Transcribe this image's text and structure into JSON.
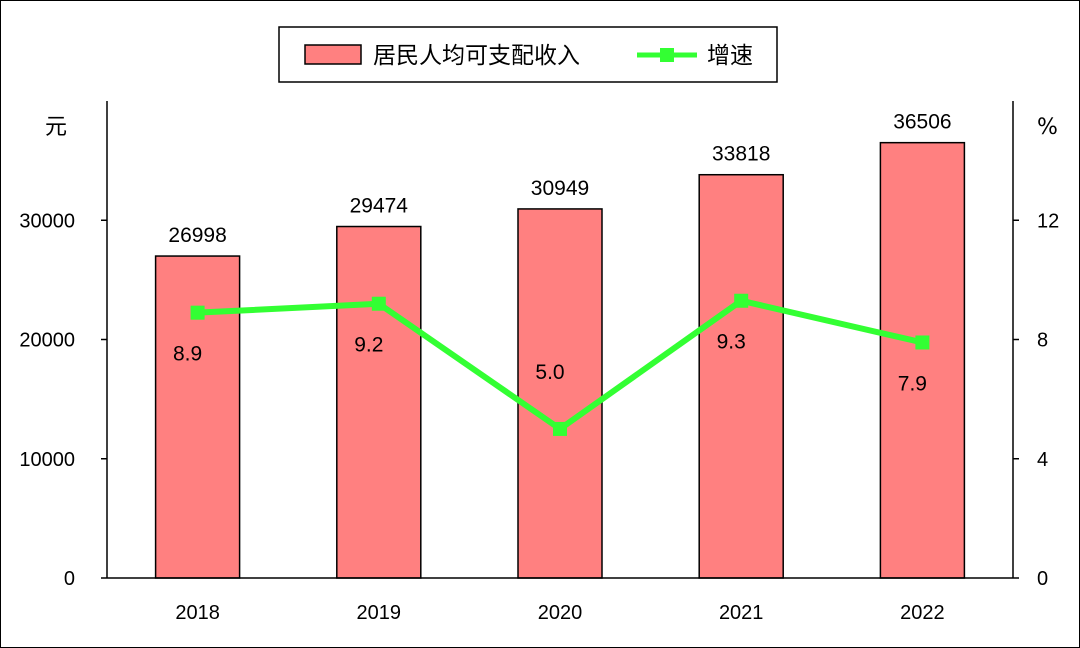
{
  "chart_data": {
    "type": "bar+line",
    "categories": [
      "2018",
      "2019",
      "2020",
      "2021",
      "2022"
    ],
    "series": [
      {
        "name": "居民人均可支配收入",
        "type": "bar",
        "axis": "left",
        "values": [
          26998,
          29474,
          30949,
          33818,
          36506
        ],
        "color": "#FF8080"
      },
      {
        "name": "增速",
        "type": "line",
        "axis": "right",
        "values": [
          8.9,
          9.2,
          5.0,
          9.3,
          7.9
        ],
        "value_labels": [
          "8.9",
          "9.2",
          "5.0",
          "9.3",
          "7.9"
        ],
        "color": "#33FF33"
      }
    ],
    "y_left": {
      "unit": "元",
      "ylim": [
        0,
        40000
      ],
      "ticks": [
        0,
        10000,
        20000,
        30000
      ]
    },
    "y_right": {
      "unit": "%",
      "ylim": [
        0,
        16
      ],
      "ticks": [
        0,
        4,
        8,
        12
      ]
    },
    "legend": {
      "placement": "top-center"
    },
    "grid": false
  }
}
